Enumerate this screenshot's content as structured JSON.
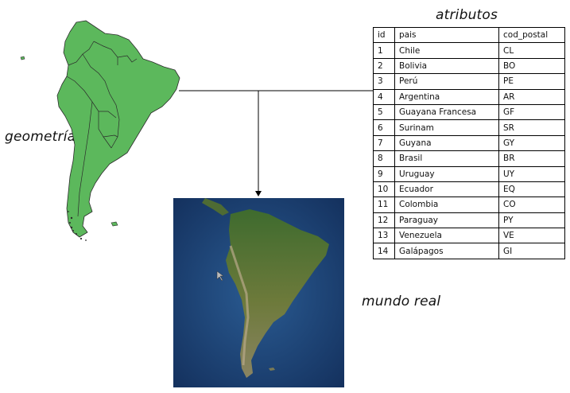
{
  "labels": {
    "geometry": "geometría",
    "attributes": "atributos",
    "real_world": "mundo real"
  },
  "table": {
    "headers": [
      "id",
      "pais",
      "cod_postal"
    ],
    "rows": [
      [
        "1",
        "Chile",
        "CL"
      ],
      [
        "2",
        "Bolivia",
        "BO"
      ],
      [
        "3",
        "Perú",
        "PE"
      ],
      [
        "4",
        "Argentina",
        "AR"
      ],
      [
        "5",
        "Guayana Francesa",
        "GF"
      ],
      [
        "6",
        "Surinam",
        "SR"
      ],
      [
        "7",
        "Guyana",
        "GY"
      ],
      [
        "8",
        "Brasil",
        "BR"
      ],
      [
        "9",
        "Uruguay",
        "UY"
      ],
      [
        "10",
        "Ecuador",
        "EQ"
      ],
      [
        "11",
        "Colombia",
        "CO"
      ],
      [
        "12",
        "Paraguay",
        "PY"
      ],
      [
        "13",
        "Venezuela",
        "VE"
      ],
      [
        "14",
        "Galápagos",
        "GI"
      ]
    ]
  },
  "colors": {
    "geometry_fill": "#5cb85c",
    "geometry_border": "#2b2b2b",
    "ocean": "#1b3f73",
    "land": "#6b7a3a"
  }
}
